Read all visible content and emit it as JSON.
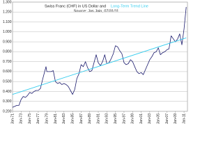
{
  "chart_data": {
    "type": "line",
    "title": "Swiss Franc (CHF) in US Dollar and",
    "subtitle": "Source: Jas Jain, 07/31/11",
    "series": [
      {
        "name": "Swiss Franc (CHF) in US Dollar",
        "color": "#1c1c6e",
        "x": [
          1971,
          1971.5,
          1972,
          1972.5,
          1973,
          1973.5,
          1974,
          1974.5,
          1975,
          1975.5,
          1976,
          1976.5,
          1977,
          1977.5,
          1978,
          1978.5,
          1978.8,
          1979,
          1979.5,
          1980,
          1980.5,
          1981,
          1981.5,
          1982,
          1982.5,
          1983,
          1983.5,
          1984,
          1984.5,
          1985,
          1985.5,
          1986,
          1986.5,
          1987,
          1987.5,
          1988,
          1988.5,
          1989,
          1989.5,
          1990,
          1990.5,
          1991,
          1991.5,
          1992,
          1992.5,
          1993,
          1993.5,
          1994,
          1994.5,
          1995,
          1995.5,
          1996,
          1996.5,
          1997,
          1997.5,
          1998,
          1998.5,
          1999,
          1999.5,
          2000,
          2000.5,
          2001,
          2001.5,
          2002,
          2002.5,
          2003,
          2003.5,
          2004,
          2004.5,
          2005,
          2005.5,
          2006,
          2006.5,
          2007,
          2007.5,
          2008,
          2008.5,
          2009,
          2009.5,
          2010,
          2010.5,
          2011,
          2011.5
        ],
        "values": [
          0.24,
          0.25,
          0.26,
          0.26,
          0.32,
          0.35,
          0.34,
          0.36,
          0.39,
          0.38,
          0.4,
          0.41,
          0.41,
          0.43,
          0.52,
          0.6,
          0.65,
          0.6,
          0.6,
          0.6,
          0.61,
          0.5,
          0.48,
          0.49,
          0.47,
          0.48,
          0.47,
          0.45,
          0.41,
          0.37,
          0.42,
          0.53,
          0.58,
          0.67,
          0.65,
          0.7,
          0.64,
          0.6,
          0.61,
          0.69,
          0.77,
          0.69,
          0.66,
          0.7,
          0.77,
          0.68,
          0.69,
          0.73,
          0.78,
          0.86,
          0.85,
          0.81,
          0.78,
          0.69,
          0.67,
          0.68,
          0.72,
          0.7,
          0.65,
          0.6,
          0.58,
          0.59,
          0.57,
          0.62,
          0.67,
          0.72,
          0.75,
          0.79,
          0.8,
          0.84,
          0.77,
          0.79,
          0.8,
          0.82,
          0.83,
          0.96,
          0.93,
          0.9,
          0.93,
          0.98,
          0.87,
          1.03,
          1.25
        ]
      },
      {
        "name": "Long-Term Trend Line",
        "color": "#33ccee",
        "x": [
          1971,
          2011.5
        ],
        "values": [
          0.37,
          0.94
        ]
      }
    ],
    "xlim": [
      1971,
      2011.8
    ],
    "xticks": [
      {
        "value": 1971,
        "label": "Jan-71"
      },
      {
        "value": 1973,
        "label": "Jan-73"
      },
      {
        "value": 1975,
        "label": "Jan-75"
      },
      {
        "value": 1977,
        "label": "Jan-77"
      },
      {
        "value": 1979,
        "label": "Jan-79"
      },
      {
        "value": 1981,
        "label": "Jan-81"
      },
      {
        "value": 1983,
        "label": "Jan-83"
      },
      {
        "value": 1985,
        "label": "Jan-85"
      },
      {
        "value": 1987,
        "label": "Jan-87"
      },
      {
        "value": 1989,
        "label": "Jan-89"
      },
      {
        "value": 1991,
        "label": "Jan-91"
      },
      {
        "value": 1993,
        "label": "Jan-93"
      },
      {
        "value": 1995,
        "label": "Jan-95"
      },
      {
        "value": 1997,
        "label": "Jan-97"
      },
      {
        "value": 1999,
        "label": "Jan-99"
      },
      {
        "value": 2001,
        "label": "Jan-01"
      },
      {
        "value": 2003,
        "label": "Jan-03"
      },
      {
        "value": 2005,
        "label": "Jan-05"
      },
      {
        "value": 2007,
        "label": "Jan-07"
      },
      {
        "value": 2009,
        "label": "Jan-09"
      },
      {
        "value": 2011,
        "label": "Jan-11"
      }
    ],
    "ylim": [
      0.2,
      1.3
    ],
    "yticks": [
      {
        "value": 0.2,
        "label": "0.200"
      },
      {
        "value": 0.3,
        "label": "0.300"
      },
      {
        "value": 0.4,
        "label": "0.400"
      },
      {
        "value": 0.5,
        "label": "0.500"
      },
      {
        "value": 0.6,
        "label": "0.600"
      },
      {
        "value": 0.7,
        "label": "0.700"
      },
      {
        "value": 0.8,
        "label": "0.800"
      },
      {
        "value": 0.9,
        "label": "0.900"
      },
      {
        "value": 1.0,
        "label": "1.000"
      },
      {
        "value": 1.1,
        "label": "1.100"
      },
      {
        "value": 1.2,
        "label": "1.200"
      },
      {
        "value": 1.3,
        "label": "1.300"
      }
    ],
    "grid": true
  }
}
